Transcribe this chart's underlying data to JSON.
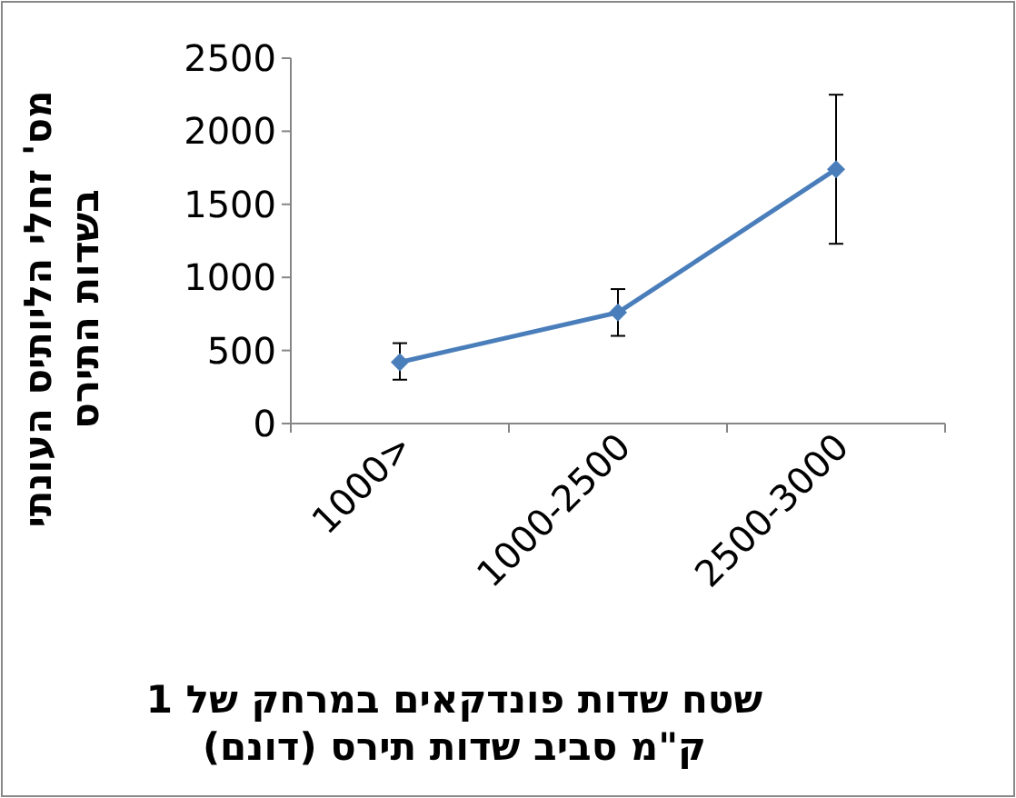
{
  "chart_data": {
    "type": "line",
    "xlabel": "שטח שדות פונדקאים במרחק של 1 ק\"מ סביב שדות תירס (דונם)",
    "ylabel": "מס' זחלי הליותיס העונתי בשדות התירס",
    "categories": [
      "1000>",
      "1000-2500",
      "2500-3000"
    ],
    "series": [
      {
        "color": "#4a7ebb",
        "values": [
          420,
          760,
          1740
        ],
        "errors": [
          [
            300,
            550
          ],
          [
            600,
            920
          ],
          [
            1230,
            2250
          ]
        ]
      }
    ],
    "ylim": [
      0,
      2500
    ],
    "yticks": [
      0,
      500,
      1000,
      1500,
      2000,
      2500
    ],
    "grid": false,
    "marker": "diamond",
    "line_style": "solid"
  }
}
